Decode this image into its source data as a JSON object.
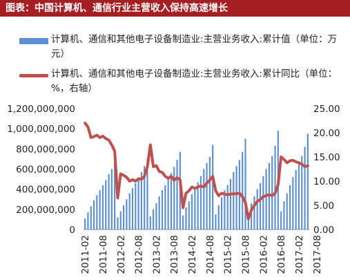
{
  "header": {
    "title": "图表：中国计算机、通信行业主营收入保持高速增长"
  },
  "legend": {
    "bar_label": "计算机、通信和其他电子设备制造业:主营业务收入:累计值（单位：万元）",
    "line_label": "计算机、通信和其他电子设备制造业:主营业务收入:累计同比（单位：%，右轴）"
  },
  "colors": {
    "bar": "#5b8fd1",
    "line": "#c0504d",
    "title_bg": "#a41e22"
  },
  "chart_data": {
    "type": "bar+line",
    "x_tick_labels": [
      "2011-02",
      "2011-08",
      "2012-02",
      "2012-08",
      "2013-02",
      "2013-08",
      "2014-02",
      "2014-08",
      "2015-02",
      "2015-08",
      "2016-02",
      "2016-08",
      "2017-02",
      "2017-08"
    ],
    "y_left": {
      "range": [
        0,
        1200000000
      ],
      "ticks": [
        "0",
        "200,000,000",
        "400,000,000",
        "600,000,000",
        "800,000,000",
        "1,000,000,000",
        "1,200,000,000"
      ]
    },
    "y_right": {
      "range": [
        0,
        25
      ],
      "ticks": [
        "0.00",
        "5.00",
        "10.00",
        "15.00",
        "20.00",
        "25.00"
      ]
    },
    "series": [
      {
        "type": "bar",
        "axis": "left",
        "start": "2011-02",
        "values": [
          110000000,
          170000000,
          230000000,
          290000000,
          340000000,
          390000000,
          440000000,
          490000000,
          550000000,
          600000000,
          660000000,
          120000000,
          180000000,
          240000000,
          300000000,
          360000000,
          410000000,
          460000000,
          510000000,
          570000000,
          630000000,
          700000000,
          130000000,
          200000000,
          260000000,
          330000000,
          390000000,
          440000000,
          500000000,
          560000000,
          620000000,
          690000000,
          770000000,
          140000000,
          220000000,
          280000000,
          350000000,
          410000000,
          470000000,
          530000000,
          600000000,
          660000000,
          720000000,
          840000000,
          150000000,
          240000000,
          320000000,
          390000000,
          440000000,
          500000000,
          570000000,
          630000000,
          690000000,
          770000000,
          900000000,
          160000000,
          260000000,
          330000000,
          400000000,
          460000000,
          530000000,
          600000000,
          660000000,
          730000000,
          830000000,
          980000000,
          180000000,
          280000000,
          360000000,
          440000000,
          520000000,
          590000000,
          660000000,
          730000000,
          820000000,
          950000000
        ]
      },
      {
        "type": "line",
        "axis": "right",
        "start": "2011-02",
        "values": [
          22.0,
          21.2,
          19.0,
          19.2,
          19.5,
          19.0,
          19.3,
          18.8,
          18.5,
          17.5,
          16.2,
          6.5,
          11.5,
          11.2,
          10.8,
          10.0,
          10.3,
          10.0,
          10.5,
          10.4,
          11.0,
          13.0,
          17.5,
          13.0,
          13.2,
          12.0,
          11.8,
          11.0,
          10.6,
          11.0,
          10.2,
          10.7,
          10.3,
          4.5,
          7.5,
          8.0,
          8.8,
          8.5,
          8.8,
          9.0,
          8.8,
          9.6,
          10.2,
          11.0,
          8.0,
          7.0,
          7.5,
          7.3,
          7.2,
          7.3,
          7.4,
          7.4,
          7.5,
          6.8,
          5.6,
          2.2,
          4.0,
          5.0,
          5.8,
          6.2,
          6.8,
          7.0,
          7.2,
          7.0,
          7.5,
          9.2,
          15.0,
          14.5,
          13.8,
          14.2,
          14.3,
          14.0,
          13.8,
          13.5,
          13.0,
          13.2
        ]
      }
    ]
  }
}
